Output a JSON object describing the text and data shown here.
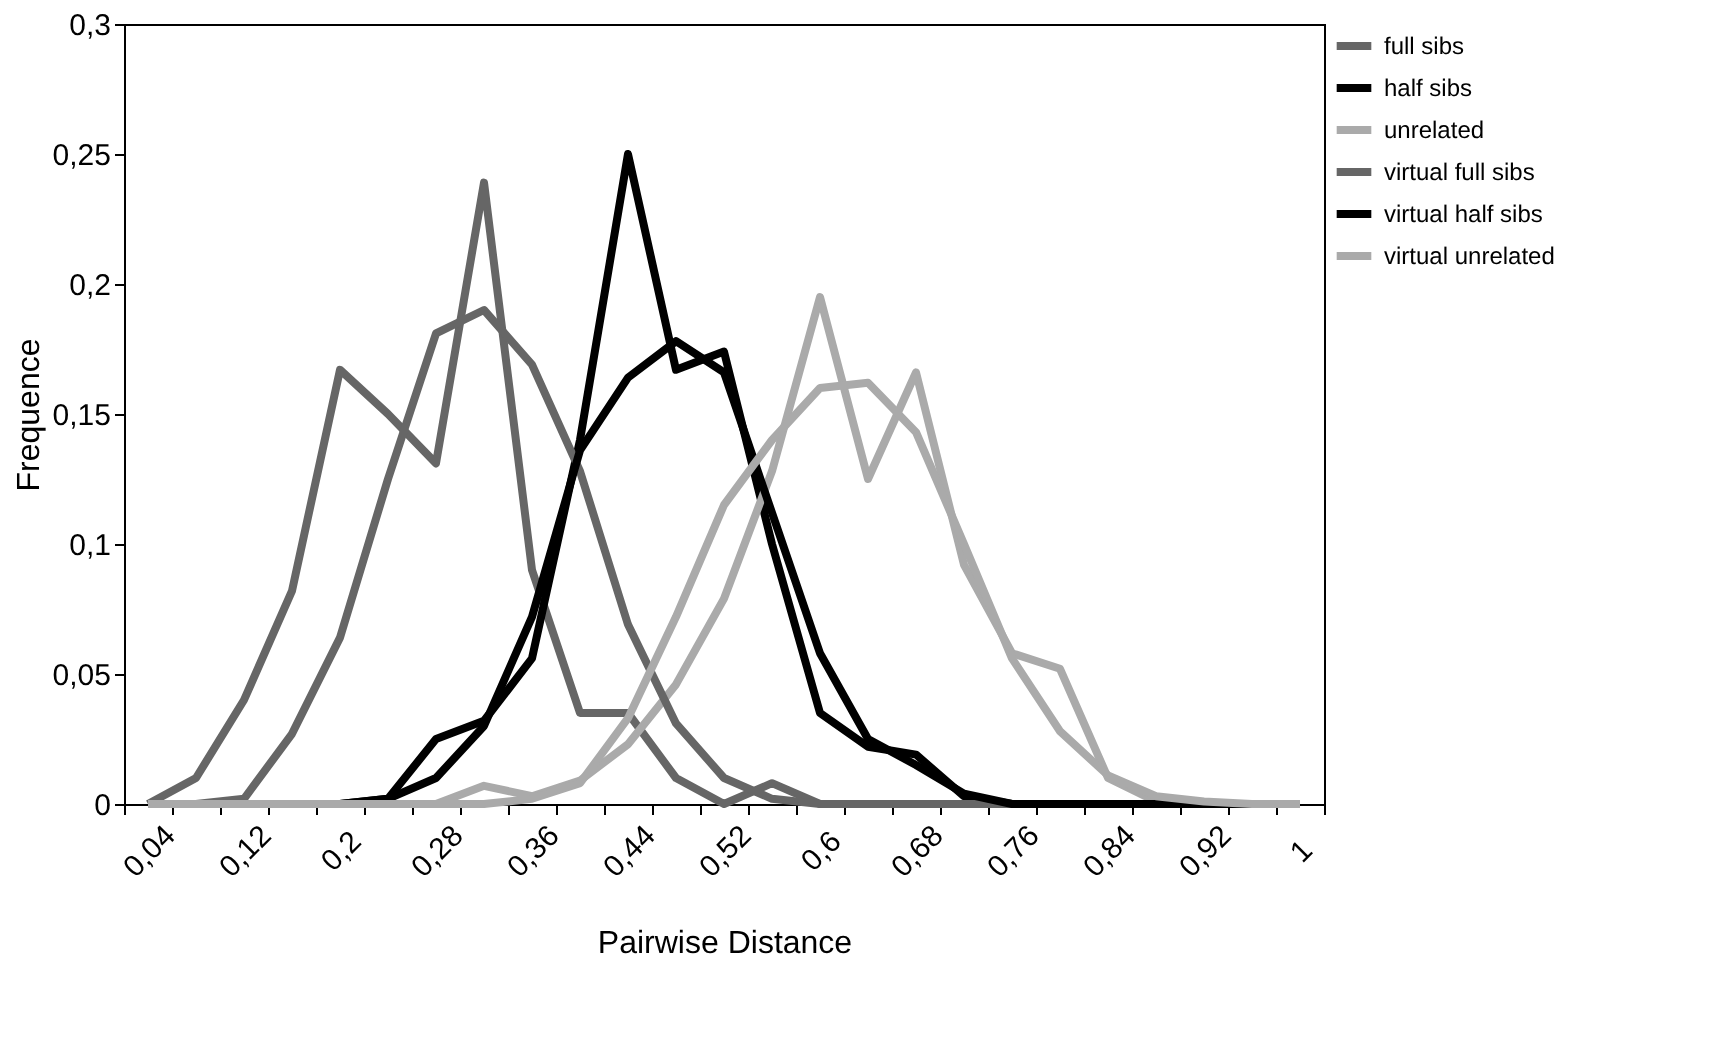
{
  "chart_data": {
    "type": "line",
    "xlabel": "Pairwise Distance",
    "ylabel": "Frequence",
    "categories": [
      "0,04",
      null,
      "0,12",
      null,
      "0,2",
      null,
      "0,28",
      null,
      "0,36",
      null,
      "0,44",
      null,
      "0,52",
      null,
      "0,6",
      null,
      "0,68",
      null,
      "0,76",
      null,
      "0,84",
      null,
      "0,92",
      null,
      "1"
    ],
    "ylim": [
      0,
      0.3
    ],
    "yticks": [
      0,
      {
        "value": 0.05,
        "label": "0,05"
      },
      {
        "value": 0.1,
        "label": "0,1"
      },
      {
        "value": 0.15,
        "label": "0,15"
      },
      {
        "value": 0.2,
        "label": "0,2"
      },
      {
        "value": 0.25,
        "label": "0,25"
      },
      {
        "value": 0.3,
        "label": "0,3"
      }
    ],
    "grid": false,
    "legend": "right",
    "marker": "none",
    "line_style": "solid",
    "series": [
      {
        "name": "full sibs",
        "color": "#666666",
        "values": [
          0,
          0.01,
          0.04,
          0.082,
          0.167,
          0.15,
          0.131,
          0.239,
          0.09,
          0.035,
          0.035,
          0.01,
          0,
          0.008,
          0,
          0,
          0,
          0,
          0,
          0,
          0,
          0,
          0,
          0,
          0
        ]
      },
      {
        "name": "half sibs",
        "color": "#000000",
        "values": [
          0,
          0,
          0,
          0,
          0,
          0.002,
          0.025,
          0.032,
          0.056,
          0.14,
          0.25,
          0.167,
          0.174,
          0.1,
          0.035,
          0.022,
          0.019,
          0.003,
          0,
          0,
          0,
          0,
          0,
          0,
          0
        ]
      },
      {
        "name": "unrelated",
        "color": "#aaaaaa",
        "values": [
          0,
          0,
          0,
          0,
          0,
          0,
          0,
          0.007,
          0.003,
          0.009,
          0.023,
          0.046,
          0.079,
          0.128,
          0.195,
          0.125,
          0.166,
          0.092,
          0.058,
          0.052,
          0.01,
          0.001,
          0,
          0,
          0
        ]
      },
      {
        "name": "virtual full sibs",
        "color": "#666666",
        "values": [
          0,
          0,
          0.002,
          0.027,
          0.064,
          0.125,
          0.181,
          0.19,
          0.169,
          0.128,
          0.069,
          0.031,
          0.01,
          0.002,
          0,
          0,
          0,
          0,
          0,
          0,
          0,
          0,
          0,
          0,
          0
        ]
      },
      {
        "name": "virtual half sibs",
        "color": "#000000",
        "values": [
          0,
          0,
          0,
          0,
          0,
          0.002,
          0.01,
          0.03,
          0.072,
          0.136,
          0.164,
          0.178,
          0.166,
          0.112,
          0.058,
          0.025,
          0.015,
          0.004,
          0,
          0,
          0,
          0,
          0,
          0,
          0
        ]
      },
      {
        "name": "virtual unrelated",
        "color": "#aaaaaa",
        "values": [
          0,
          0,
          0,
          0,
          0,
          0,
          0,
          0,
          0.002,
          0.008,
          0.033,
          0.072,
          0.115,
          0.14,
          0.16,
          0.162,
          0.143,
          0.1,
          0.056,
          0.028,
          0.011,
          0.003,
          0.001,
          0,
          0
        ]
      }
    ]
  }
}
